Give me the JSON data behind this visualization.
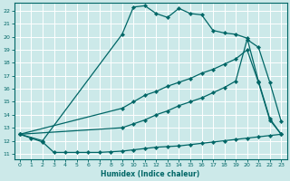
{
  "xlabel": "Humidex (Indice chaleur)",
  "bg_color": "#cce9e9",
  "grid_color": "#ffffff",
  "line_color": "#006666",
  "xlim": [
    -0.5,
    23.5
  ],
  "ylim": [
    10.6,
    22.6
  ],
  "xticks": [
    0,
    1,
    2,
    3,
    4,
    5,
    6,
    7,
    8,
    9,
    10,
    11,
    12,
    13,
    14,
    15,
    16,
    17,
    18,
    19,
    20,
    21,
    22,
    23
  ],
  "yticks": [
    11,
    12,
    13,
    14,
    15,
    16,
    17,
    18,
    19,
    20,
    21,
    22
  ],
  "line_bottom_x": [
    0,
    1,
    2,
    3,
    4,
    5,
    6,
    7,
    8,
    9,
    10,
    11,
    12,
    13,
    14,
    15,
    16,
    17,
    18,
    19,
    20,
    21,
    22,
    23
  ],
  "line_bottom_y": [
    12.5,
    12.2,
    11.9,
    11.1,
    11.1,
    11.1,
    11.1,
    11.1,
    11.15,
    11.2,
    11.3,
    11.4,
    11.5,
    11.55,
    11.6,
    11.7,
    11.8,
    11.9,
    12.0,
    12.1,
    12.2,
    12.3,
    12.4,
    12.5
  ],
  "line_top_x": [
    0,
    2,
    9,
    10,
    11,
    12,
    13,
    14,
    15,
    16,
    17,
    18,
    19,
    20,
    21,
    22,
    23
  ],
  "line_top_y": [
    12.5,
    12.0,
    20.2,
    22.3,
    22.4,
    21.8,
    21.5,
    22.2,
    21.8,
    21.7,
    20.5,
    20.3,
    20.2,
    19.9,
    16.6,
    13.7,
    12.5
  ],
  "line_mid1_x": [
    0,
    9,
    10,
    11,
    12,
    13,
    14,
    15,
    16,
    17,
    18,
    19,
    20,
    21,
    22,
    23
  ],
  "line_mid1_y": [
    12.5,
    14.5,
    15.0,
    15.5,
    15.8,
    16.2,
    16.5,
    16.8,
    17.2,
    17.5,
    17.9,
    18.3,
    19.0,
    16.5,
    13.6,
    12.5
  ],
  "line_mid2_x": [
    0,
    9,
    10,
    11,
    12,
    13,
    14,
    15,
    16,
    17,
    18,
    19,
    20,
    21,
    22,
    23
  ],
  "line_mid2_y": [
    12.5,
    13.0,
    13.3,
    13.6,
    14.0,
    14.3,
    14.7,
    15.0,
    15.3,
    15.7,
    16.1,
    16.6,
    19.8,
    19.2,
    16.5,
    13.5
  ]
}
